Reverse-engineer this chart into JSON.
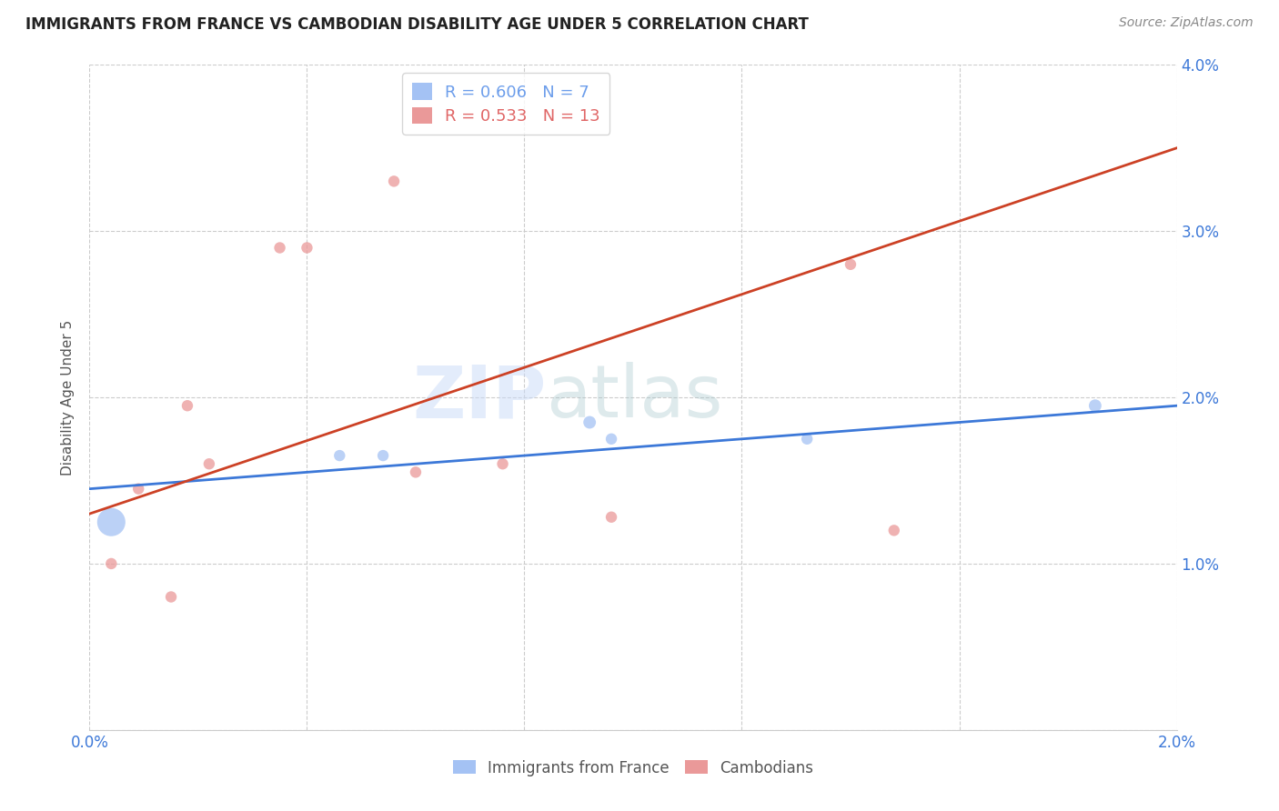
{
  "title": "IMMIGRANTS FROM FRANCE VS CAMBODIAN DISABILITY AGE UNDER 5 CORRELATION CHART",
  "source": "Source: ZipAtlas.com",
  "ylabel": "Disability Age Under 5",
  "xlim": [
    0.0,
    0.02
  ],
  "ylim": [
    0.0,
    0.04
  ],
  "yticks": [
    0.0,
    0.01,
    0.02,
    0.03,
    0.04
  ],
  "xticks": [
    0.0,
    0.004,
    0.008,
    0.012,
    0.016,
    0.02
  ],
  "ytick_labels": [
    "",
    "1.0%",
    "2.0%",
    "3.0%",
    "4.0%"
  ],
  "xtick_labels": [
    "0.0%",
    "",
    "",
    "",
    "",
    "2.0%"
  ],
  "france_r": "0.606",
  "france_n": "7",
  "cambodian_r": "0.533",
  "cambodian_n": "13",
  "france_color": "#a4c2f4",
  "cambodian_color": "#ea9999",
  "line_france_color": "#3c78d8",
  "line_cambodian_color": "#cc4125",
  "france_text_color": "#6d9eeb",
  "cambodian_text_color": "#e06666",
  "france_points_x": [
    0.0004,
    0.0046,
    0.0054,
    0.0092,
    0.0096,
    0.0132,
    0.0185
  ],
  "france_points_y": [
    0.0125,
    0.0165,
    0.0165,
    0.0185,
    0.0175,
    0.0175,
    0.0195
  ],
  "france_sizes": [
    500,
    80,
    80,
    100,
    80,
    80,
    100
  ],
  "cambodian_points_x": [
    0.0004,
    0.0009,
    0.0015,
    0.0018,
    0.0022,
    0.0035,
    0.004,
    0.0056,
    0.006,
    0.0076,
    0.0096,
    0.014,
    0.0148
  ],
  "cambodian_points_y": [
    0.01,
    0.0145,
    0.008,
    0.0195,
    0.016,
    0.029,
    0.029,
    0.033,
    0.0155,
    0.016,
    0.0128,
    0.028,
    0.012
  ],
  "cambodian_sizes": [
    80,
    80,
    80,
    80,
    80,
    80,
    80,
    80,
    80,
    80,
    80,
    80,
    80
  ],
  "france_line_x": [
    0.0,
    0.02
  ],
  "france_line_y": [
    0.0145,
    0.0195
  ],
  "cambodian_line_x": [
    0.0,
    0.02
  ],
  "cambodian_line_y": [
    0.013,
    0.035
  ],
  "watermark_zip": "ZIP",
  "watermark_atlas": "atlas",
  "background_color": "#ffffff",
  "grid_color": "#cccccc",
  "legend_box_color": "#dddddd"
}
